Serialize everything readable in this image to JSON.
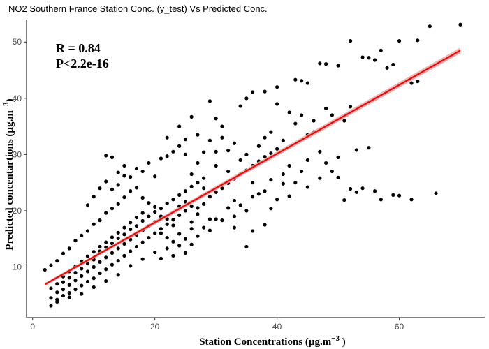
{
  "chart_data": {
    "type": "scatter",
    "title": "NO2 Southern France Station Conc. (y_test) Vs Predicted Conc.",
    "xlabel_main": "Station Concentrations (µg.m",
    "xlabel_exp": "−3",
    "xlabel_end": " )",
    "ylabel_main": "Predicted concentartions (µg.m",
    "ylabel_exp": "−3",
    "ylabel_end": ")",
    "annotations": [
      "R = 0.84",
      "P<2.2e-16"
    ],
    "xlim": [
      -1,
      74
    ],
    "ylim": [
      1,
      54
    ],
    "x_ticks": [
      0,
      20,
      40,
      60
    ],
    "y_ticks": [
      10,
      20,
      30,
      40,
      50
    ],
    "grid": false,
    "point_color": "#000000",
    "fit_line": {
      "color": "#ff0000",
      "band_color": "#f4a6a6",
      "x": [
        2,
        70
      ],
      "y": [
        6.9,
        48.5
      ]
    },
    "points": [
      [
        65,
        52.8
      ],
      [
        70,
        53.1
      ],
      [
        52,
        50.2
      ],
      [
        60,
        50.2
      ],
      [
        57,
        48.5
      ],
      [
        63,
        50.3
      ],
      [
        47,
        46.2
      ],
      [
        48,
        46.1
      ],
      [
        54,
        47.3
      ],
      [
        55,
        47.2
      ],
      [
        56,
        46.8
      ],
      [
        58,
        45.4
      ],
      [
        59,
        46.0
      ],
      [
        50,
        45.8
      ],
      [
        62,
        42.7
      ],
      [
        63,
        43.0
      ],
      [
        44,
        43.1
      ],
      [
        45,
        42.7
      ],
      [
        43,
        43.3
      ],
      [
        40,
        42.0
      ],
      [
        38,
        41.2
      ],
      [
        36,
        41.1
      ],
      [
        35,
        40.0
      ],
      [
        34,
        38.6
      ],
      [
        40,
        39.0
      ],
      [
        42,
        37.5
      ],
      [
        46,
        36.0
      ],
      [
        48,
        38.2
      ],
      [
        49,
        37.0
      ],
      [
        46,
        34.0
      ],
      [
        51,
        36.0
      ],
      [
        52,
        38.5
      ],
      [
        53,
        30.8
      ],
      [
        50,
        25.9
      ],
      [
        54,
        24.0
      ],
      [
        52,
        23.9
      ],
      [
        53,
        23.3
      ],
      [
        56,
        23.5
      ],
      [
        57,
        22.0
      ],
      [
        59,
        22.8
      ],
      [
        60,
        22.7
      ],
      [
        62,
        22.0
      ],
      [
        66,
        23.1
      ],
      [
        51,
        21.9
      ],
      [
        55,
        31.2
      ],
      [
        44,
        27.0
      ],
      [
        45,
        24.2
      ],
      [
        47,
        25.8
      ],
      [
        42,
        22.6
      ],
      [
        43,
        25.0
      ],
      [
        41,
        24.8
      ],
      [
        40,
        22.0
      ],
      [
        39,
        20.4
      ],
      [
        38,
        17.5
      ],
      [
        36,
        16.4
      ],
      [
        35,
        13.6
      ],
      [
        33,
        17.0
      ],
      [
        29,
        39.5
      ],
      [
        30,
        36.4
      ],
      [
        31,
        35.0
      ],
      [
        26,
        36.7
      ],
      [
        24,
        35.0
      ],
      [
        22,
        33.0
      ],
      [
        25,
        32.7
      ],
      [
        12,
        29.8
      ],
      [
        13,
        29.5
      ],
      [
        15,
        26.2
      ],
      [
        14,
        24.6
      ],
      [
        18,
        27.0
      ],
      [
        20,
        26.1
      ],
      [
        21,
        29.3
      ],
      [
        22,
        29.7
      ],
      [
        27,
        28.5
      ],
      [
        28,
        30.4
      ],
      [
        32,
        30.7
      ],
      [
        33,
        32.0
      ],
      [
        30,
        28.0
      ],
      [
        26,
        26.5
      ],
      [
        28,
        24.0
      ],
      [
        33,
        21.8
      ],
      [
        31,
        18.3
      ],
      [
        29,
        18.5
      ],
      [
        27,
        19.4
      ],
      [
        26,
        16.8
      ],
      [
        24,
        15.9
      ],
      [
        22,
        13.3
      ],
      [
        20,
        12.6
      ],
      [
        18,
        11.4
      ],
      [
        16,
        10.2
      ],
      [
        14,
        8.6
      ],
      [
        12,
        7.5
      ],
      [
        10,
        6.4
      ],
      [
        8,
        5.2
      ],
      [
        6,
        4.6
      ],
      [
        4,
        3.8
      ],
      [
        3,
        3.1
      ],
      [
        2,
        9.5
      ],
      [
        3,
        10.3
      ],
      [
        4,
        11.1
      ],
      [
        5,
        12.4
      ],
      [
        6,
        13.3
      ],
      [
        7,
        14.7
      ],
      [
        8,
        15.6
      ],
      [
        9,
        16.4
      ],
      [
        10,
        17.6
      ],
      [
        11,
        18.3
      ],
      [
        12,
        19.6
      ],
      [
        13,
        20.4
      ],
      [
        14,
        21.2
      ],
      [
        15,
        22.4
      ],
      [
        16,
        23.5
      ],
      [
        17,
        24.1
      ],
      [
        18,
        22.3
      ],
      [
        19,
        21.4
      ],
      [
        20,
        20.7
      ],
      [
        21,
        19.0
      ],
      [
        22,
        18.5
      ],
      [
        23,
        17.4
      ],
      [
        24,
        20.8
      ],
      [
        25,
        21.6
      ],
      [
        5,
        7.3
      ],
      [
        6,
        8.1
      ],
      [
        7,
        9.0
      ],
      [
        8,
        9.7
      ],
      [
        9,
        10.6
      ],
      [
        10,
        11.3
      ],
      [
        11,
        12.8
      ],
      [
        12,
        13.5
      ],
      [
        13,
        14.2
      ],
      [
        14,
        15.1
      ],
      [
        15,
        15.8
      ],
      [
        16,
        16.7
      ],
      [
        17,
        17.3
      ],
      [
        18,
        18.2
      ],
      [
        19,
        19.0
      ],
      [
        20,
        19.8
      ],
      [
        21,
        20.4
      ],
      [
        22,
        21.3
      ],
      [
        23,
        22.0
      ],
      [
        24,
        22.8
      ],
      [
        25,
        23.5
      ],
      [
        26,
        24.3
      ],
      [
        27,
        25.0
      ],
      [
        28,
        25.8
      ],
      [
        3,
        6.2
      ],
      [
        4,
        7.0
      ],
      [
        5,
        8.3
      ],
      [
        6,
        9.2
      ],
      [
        7,
        10.1
      ],
      [
        8,
        11.0
      ],
      [
        9,
        11.9
      ],
      [
        10,
        12.7
      ],
      [
        11,
        13.6
      ],
      [
        12,
        14.4
      ],
      [
        13,
        15.3
      ],
      [
        14,
        16.1
      ],
      [
        15,
        17.0
      ],
      [
        16,
        17.9
      ],
      [
        17,
        18.8
      ],
      [
        18,
        19.6
      ],
      [
        4,
        5.5
      ],
      [
        5,
        6.0
      ],
      [
        6,
        6.8
      ],
      [
        7,
        7.6
      ],
      [
        8,
        8.4
      ],
      [
        9,
        9.2
      ],
      [
        10,
        10.0
      ],
      [
        11,
        10.9
      ],
      [
        12,
        11.7
      ],
      [
        13,
        12.5
      ],
      [
        14,
        13.3
      ],
      [
        15,
        14.1
      ],
      [
        16,
        14.9
      ],
      [
        17,
        15.7
      ],
      [
        18,
        16.5
      ],
      [
        19,
        17.3
      ],
      [
        20,
        18.0
      ],
      [
        21,
        16.0
      ],
      [
        22,
        15.2
      ],
      [
        23,
        14.5
      ],
      [
        24,
        13.8
      ],
      [
        25,
        15.0
      ],
      [
        26,
        18.0
      ],
      [
        27,
        20.5
      ],
      [
        28,
        21.2
      ],
      [
        29,
        22.5
      ],
      [
        30,
        23.3
      ],
      [
        31,
        24.0
      ],
      [
        32,
        24.9
      ],
      [
        33,
        25.7
      ],
      [
        34,
        26.5
      ],
      [
        35,
        27.2
      ],
      [
        36,
        28.0
      ],
      [
        37,
        28.8
      ],
      [
        38,
        29.6
      ],
      [
        39,
        30.2
      ],
      [
        40,
        31.0
      ],
      [
        36,
        25.0
      ],
      [
        37,
        23.0
      ],
      [
        34,
        21.0
      ],
      [
        3,
        4.5
      ],
      [
        4,
        4.2
      ],
      [
        5,
        4.9
      ],
      [
        6,
        5.4
      ],
      [
        7,
        6.0
      ],
      [
        8,
        6.7
      ],
      [
        9,
        7.4
      ],
      [
        10,
        8.0
      ],
      [
        11,
        8.9
      ],
      [
        12,
        9.6
      ],
      [
        13,
        10.4
      ],
      [
        14,
        11.1
      ],
      [
        15,
        12.0
      ],
      [
        16,
        12.8
      ],
      [
        17,
        13.6
      ],
      [
        18,
        14.4
      ],
      [
        19,
        15.2
      ],
      [
        20,
        16.0
      ],
      [
        21,
        16.8
      ],
      [
        22,
        17.6
      ],
      [
        23,
        18.4
      ],
      [
        24,
        19.2
      ],
      [
        25,
        20.0
      ],
      [
        26,
        20.8
      ],
      [
        9,
        21.0
      ],
      [
        10,
        22.5
      ],
      [
        11,
        24.0
      ],
      [
        12,
        25.2
      ],
      [
        13,
        23.8
      ],
      [
        14,
        26.8
      ],
      [
        15,
        28.0
      ],
      [
        16,
        26.0
      ],
      [
        17,
        27.5
      ],
      [
        19,
        28.5
      ],
      [
        23,
        30.5
      ],
      [
        24,
        31.5
      ],
      [
        25,
        30.0
      ],
      [
        27,
        33.5
      ],
      [
        29,
        32.5
      ],
      [
        30,
        30.5
      ],
      [
        31,
        33.0
      ],
      [
        32,
        27.0
      ],
      [
        34,
        29.0
      ],
      [
        35,
        30.0
      ],
      [
        37,
        31.5
      ],
      [
        38,
        33.0
      ],
      [
        39,
        34.0
      ],
      [
        41,
        32.5
      ],
      [
        43,
        35.5
      ],
      [
        44,
        37.0
      ],
      [
        45,
        33.5
      ],
      [
        47,
        30.5
      ],
      [
        48,
        28.5
      ],
      [
        49,
        27.0
      ],
      [
        50,
        29.5
      ],
      [
        45,
        29.0
      ],
      [
        42,
        28.0
      ],
      [
        41,
        26.5
      ],
      [
        39,
        25.5
      ],
      [
        38,
        23.5
      ],
      [
        36,
        22.5
      ],
      [
        35,
        20.0
      ],
      [
        33,
        19.0
      ],
      [
        32,
        20.5
      ],
      [
        30,
        18.5
      ],
      [
        29,
        16.5
      ],
      [
        28,
        17.0
      ],
      [
        27,
        15.5
      ],
      [
        26,
        14.0
      ],
      [
        25,
        12.5
      ],
      [
        23,
        12.0
      ],
      [
        21,
        11.5
      ]
    ]
  }
}
